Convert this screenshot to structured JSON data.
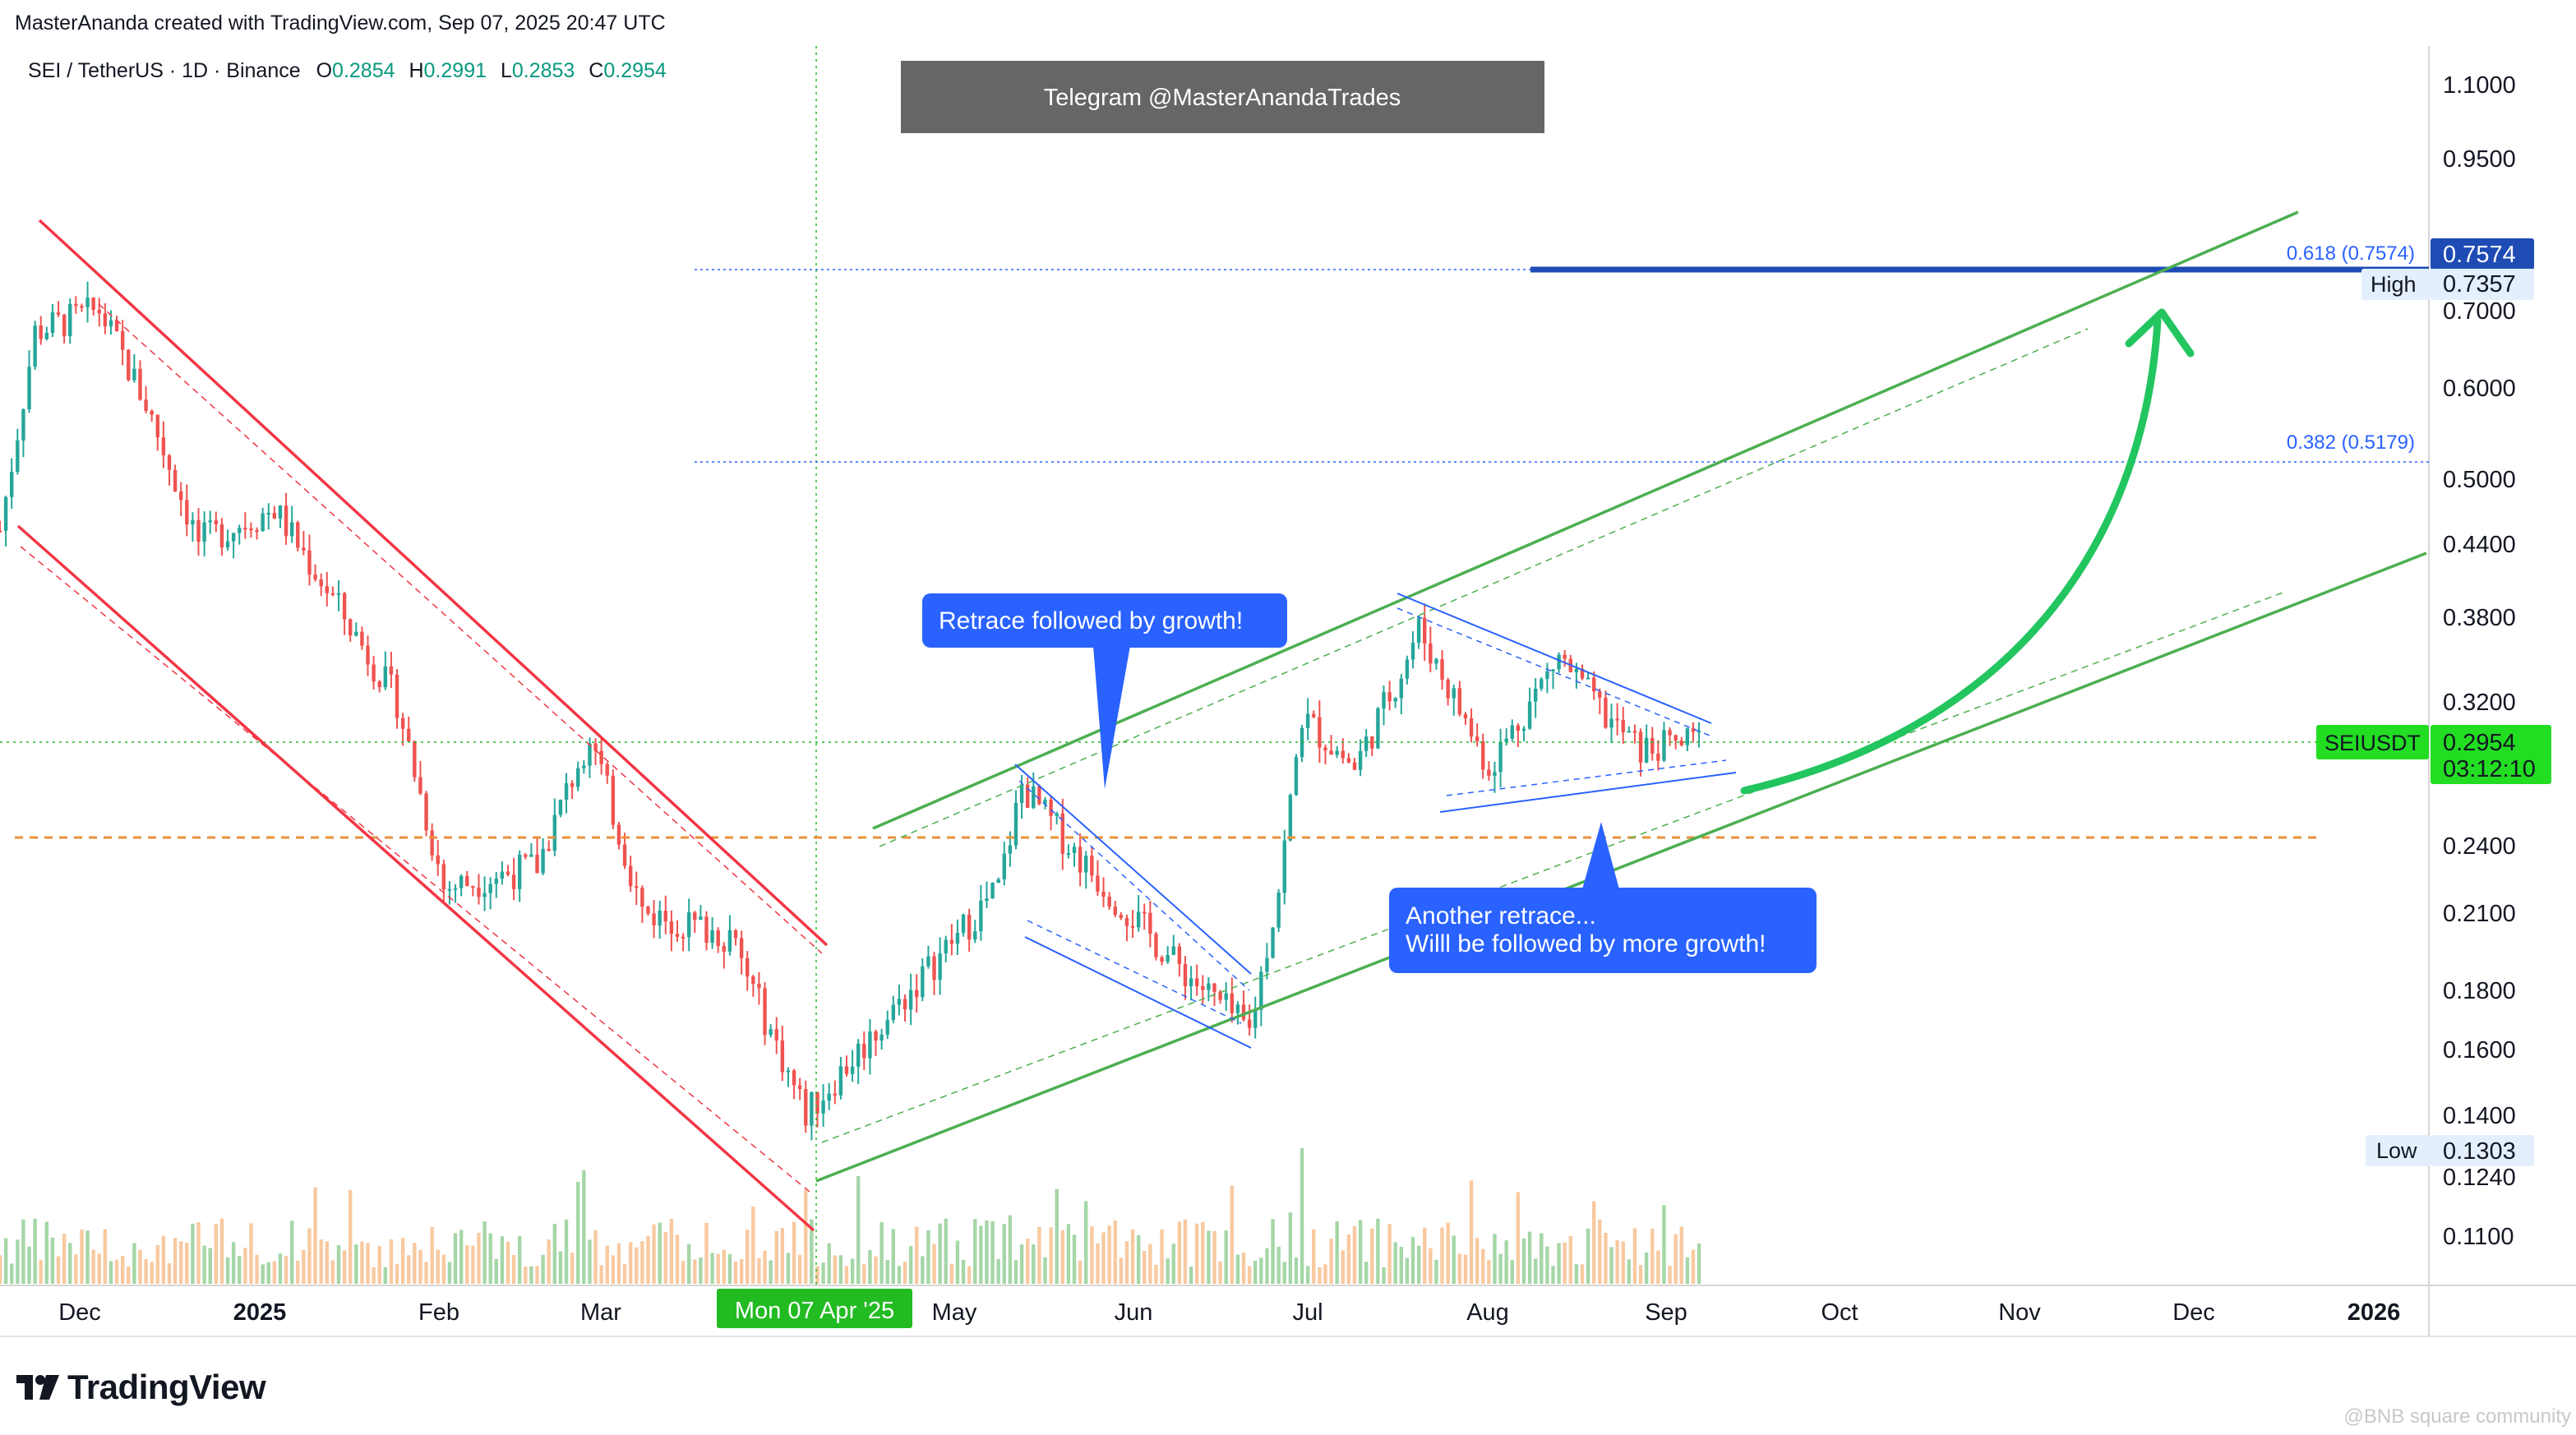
{
  "header": {
    "text": "MasterAnanda created with TradingView.com, Sep 07, 2025 20:47 UTC"
  },
  "legend": {
    "symbol": "SEI / TetherUS · 1D · Binance",
    "open_label": "O",
    "open": "0.2854",
    "high_label": "H",
    "high": "0.2991",
    "low_label": "L",
    "low": "0.2853",
    "close_label": "C",
    "close": "0.2954"
  },
  "banner": {
    "text": "Telegram @MasterAnandaTrades"
  },
  "callouts": {
    "first": "Retrace followed by growth!",
    "second_line1": "Another retrace...",
    "second_line2": "Willl be followed by more growth!"
  },
  "price_axis": {
    "ticks": [
      "1.1000",
      "0.9500",
      "0.7000",
      "0.6000",
      "0.5000",
      "0.4400",
      "0.3800",
      "0.3200",
      "0.2400",
      "0.2100",
      "0.1800",
      "0.1600",
      "0.1400",
      "0.1240",
      "0.1100"
    ],
    "fib_0618_label": "0.618 (0.7574)",
    "fib_0618_value": "0.7574",
    "fib_0382_label": "0.382 (0.5179)",
    "high_label": "High",
    "high_value": "0.7357",
    "low_label": "Low",
    "low_value": "0.1303",
    "symbol_tag": "SEIUSDT",
    "last_price": "0.2954",
    "countdown": "03:12:10"
  },
  "time_axis": {
    "labels": [
      "Dec",
      "2025",
      "Feb",
      "Mar",
      "May",
      "Jun",
      "Jul",
      "Aug",
      "Sep",
      "Oct",
      "Nov",
      "Dec",
      "2026"
    ],
    "crosshair_label": "Mon 07 Apr '25"
  },
  "logo": {
    "text": "TradingView"
  },
  "watermark": {
    "text": "@BNB square community"
  },
  "colors": {
    "up": "#26a69a",
    "down": "#ef5350",
    "channel_down": "#f23645",
    "channel_up": "#4caf50",
    "fib": "#2962ff",
    "callout": "#2962ff",
    "arrow": "#22c55e",
    "support": "#e8913a",
    "price_tag": "#22dd22"
  },
  "chart_data": {
    "type": "candlestick",
    "title": "SEI / TetherUS · 1D · Binance",
    "interval": "1D",
    "x_range": [
      "2024-11-20",
      "2026-01-10"
    ],
    "y_scale": "log",
    "y_range": [
      0.1,
      1.2
    ],
    "last": {
      "open": 0.2854,
      "high": 0.2991,
      "low": 0.2853,
      "close": 0.2954
    },
    "close_path": [
      {
        "date": "2024-11-20",
        "close": 0.45
      },
      {
        "date": "2024-11-26",
        "close": 0.67
      },
      {
        "date": "2024-12-07",
        "close": 0.7
      },
      {
        "date": "2024-12-15",
        "close": 0.58
      },
      {
        "date": "2024-12-24",
        "close": 0.44
      },
      {
        "date": "2025-01-06",
        "close": 0.47
      },
      {
        "date": "2025-01-15",
        "close": 0.4
      },
      {
        "date": "2025-01-27",
        "close": 0.32
      },
      {
        "date": "2025-02-04",
        "close": 0.22
      },
      {
        "date": "2025-02-20",
        "close": 0.23
      },
      {
        "date": "2025-03-01",
        "close": 0.3
      },
      {
        "date": "2025-03-10",
        "close": 0.21
      },
      {
        "date": "2025-03-25",
        "close": 0.2
      },
      {
        "date": "2025-04-07",
        "close": 0.14
      },
      {
        "date": "2025-04-21",
        "close": 0.17
      },
      {
        "date": "2025-05-10",
        "close": 0.22
      },
      {
        "date": "2025-05-14",
        "close": 0.27
      },
      {
        "date": "2025-05-25",
        "close": 0.23
      },
      {
        "date": "2025-06-09",
        "close": 0.19
      },
      {
        "date": "2025-06-22",
        "close": 0.165
      },
      {
        "date": "2025-06-27",
        "close": 0.22
      },
      {
        "date": "2025-07-01",
        "close": 0.31
      },
      {
        "date": "2025-07-10",
        "close": 0.28
      },
      {
        "date": "2025-07-18",
        "close": 0.34
      },
      {
        "date": "2025-07-21",
        "close": 0.37
      },
      {
        "date": "2025-08-02",
        "close": 0.28
      },
      {
        "date": "2025-08-14",
        "close": 0.35
      },
      {
        "date": "2025-08-22",
        "close": 0.31
      },
      {
        "date": "2025-08-28",
        "close": 0.29
      },
      {
        "date": "2025-09-07",
        "close": 0.2954
      }
    ],
    "levels": [
      {
        "name": "0.618",
        "value": 0.7574
      },
      {
        "name": "0.382",
        "value": 0.5179
      },
      {
        "name": "High",
        "value": 0.7357
      },
      {
        "name": "Low",
        "value": 0.1303
      },
      {
        "name": "support",
        "value": 0.2465
      }
    ],
    "volume": "shown as bars along the bottom"
  }
}
